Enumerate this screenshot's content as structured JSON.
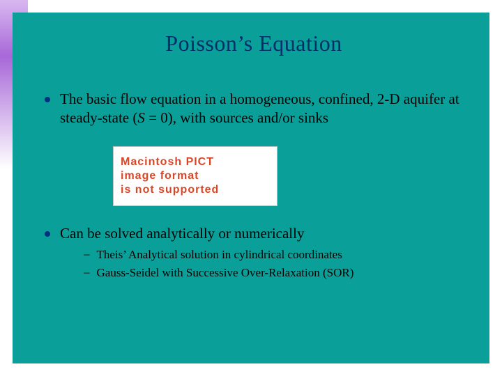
{
  "slide": {
    "background_color": "#0aa099",
    "gradient": {
      "top_color": "#d8b8f0",
      "mid_color": "#a868d8",
      "bottom_color": "#ffffff"
    },
    "title": {
      "text": "Poisson’s Equation",
      "color": "#002f6c",
      "fontsize": 32
    },
    "bullets": [
      {
        "text_parts": {
          "prefix": "The basic flow equation in a homogeneous, confined,  2-D aquifer at steady-state (",
          "italic": "S",
          "suffix": " = 0), with sources and/or sinks"
        },
        "fontsize": 21
      },
      {
        "text": "Can be solved analytically or numerically",
        "fontsize": 21,
        "sub_items": [
          "Theis’ Analytical solution in cylindrical coordinates",
          "Gauss-Seidel with Successive Over-Relaxation (SOR)"
        ]
      }
    ],
    "image_placeholder": {
      "lines": [
        "Macintosh PICT",
        "image format",
        "is not supported"
      ],
      "text_color": "#d84828",
      "background_color": "#ffffff",
      "fontsize": 16
    },
    "bullet_color": "#003080",
    "sub_fontsize": 17
  }
}
